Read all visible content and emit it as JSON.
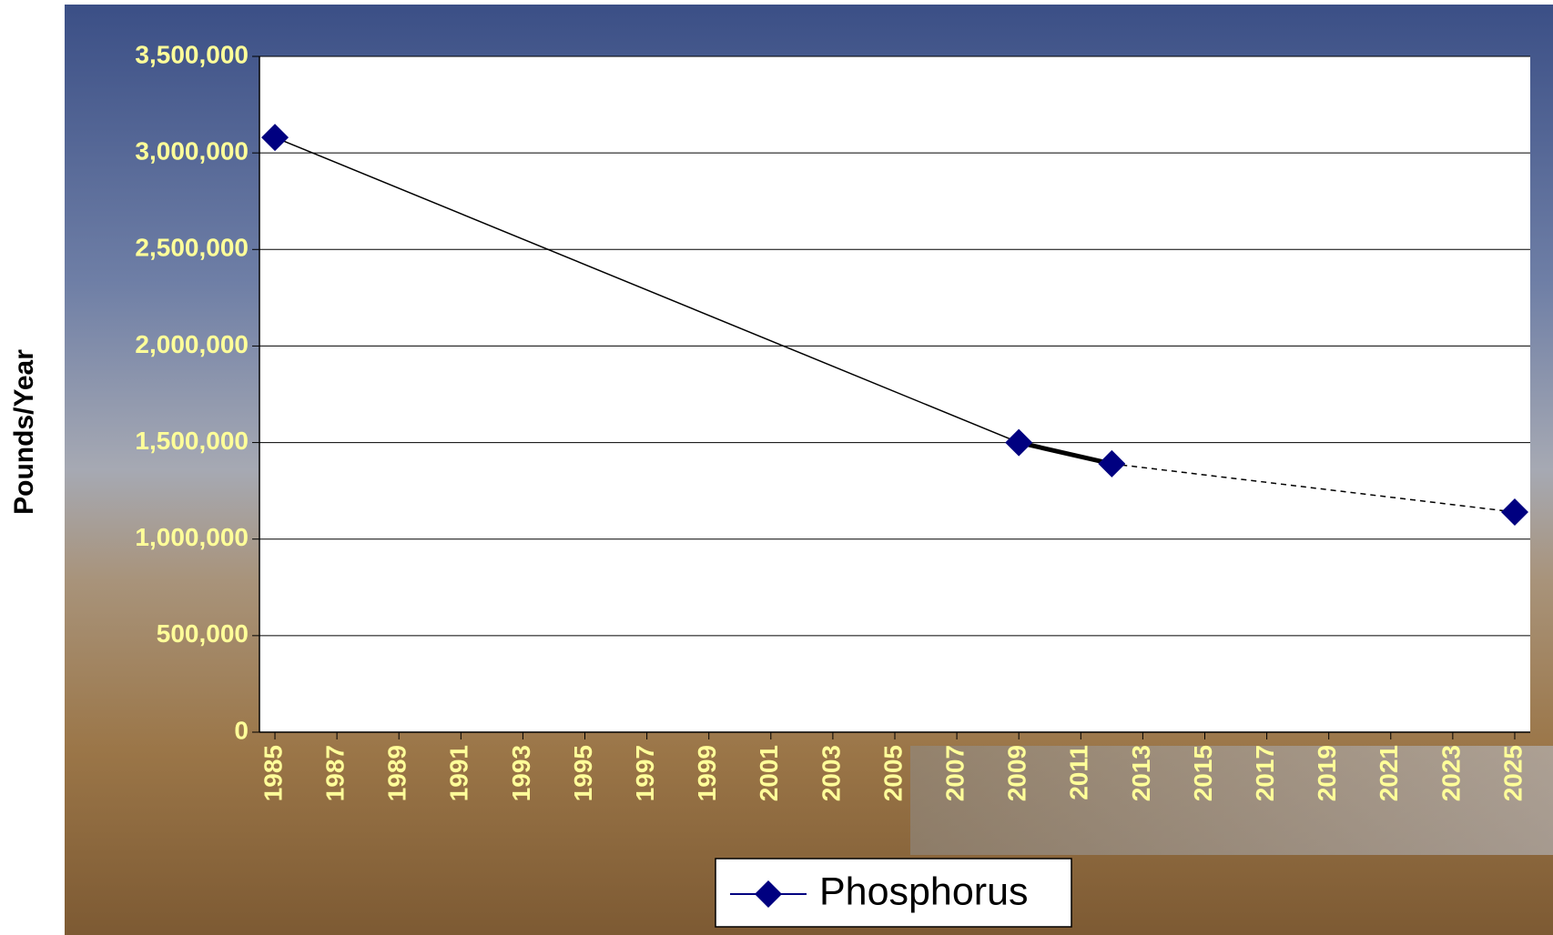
{
  "chart_data": {
    "type": "line",
    "y_label": "Pounds/Year",
    "x": [
      1985,
      2009,
      2012,
      2025
    ],
    "series": [
      {
        "name": "Phosphorus",
        "color": "#000080",
        "values": [
          3080000,
          1500000,
          1390000,
          1140000
        ]
      }
    ],
    "segment_styles": [
      "thin",
      "thick",
      "dashed"
    ],
    "xlim": [
      1984.5,
      2025.5
    ],
    "xticks": [
      1985,
      1987,
      1989,
      1991,
      1993,
      1995,
      1997,
      1999,
      2001,
      2003,
      2005,
      2007,
      2009,
      2011,
      2013,
      2015,
      2017,
      2019,
      2021,
      2023,
      2025
    ],
    "ylim": [
      0,
      3500000
    ],
    "yticks": [
      0,
      {
        "value": 500000,
        "label": "500,000"
      },
      {
        "value": 1000000,
        "label": "1,000,000"
      },
      {
        "value": 1500000,
        "label": "1,500,000"
      },
      {
        "value": 2000000,
        "label": "2,000,000"
      },
      {
        "value": 2500000,
        "label": "2,500,000"
      },
      {
        "value": 3000000,
        "label": "3,000,000"
      },
      {
        "value": 3500000,
        "label": "3,500,000"
      }
    ],
    "grid": true,
    "legend": "bottom"
  }
}
